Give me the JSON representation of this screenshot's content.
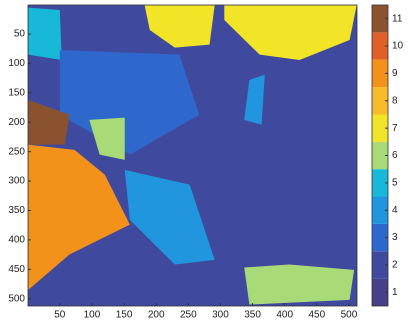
{
  "chart_data": {
    "type": "classmap",
    "xlim": [
      0.5,
      512.5
    ],
    "ylim": [
      0.5,
      512.5
    ],
    "xticks": [
      50,
      100,
      150,
      200,
      250,
      300,
      350,
      400,
      450,
      500
    ],
    "yticks": [
      50,
      100,
      150,
      200,
      250,
      300,
      350,
      400,
      450,
      500
    ],
    "clim": [
      0.5,
      11.5
    ],
    "cticks": [
      1,
      2,
      3,
      4,
      5,
      6,
      7,
      8,
      9,
      10,
      11
    ],
    "colors": [
      "#463f8a",
      "#3f4a9e",
      "#2f68cc",
      "#2196de",
      "#18b8d8",
      "#a8db78",
      "#f2e426",
      "#f8bc2a",
      "#f2921a",
      "#e0602a",
      "#8b5230"
    ],
    "regions": [
      {
        "value": 2,
        "x": [
          0.5,
          512.5,
          512.5,
          0.5
        ],
        "y": [
          0.5,
          0.5,
          512.5,
          512.5
        ]
      },
      {
        "value": 5,
        "x": [
          1,
          50,
          53,
          1
        ],
        "y": [
          5,
          9,
          94,
          85
        ]
      },
      {
        "value": 3,
        "x": [
          50,
          236,
          267,
          159,
          50
        ],
        "y": [
          77,
          85,
          187,
          255,
          187
        ]
      },
      {
        "value": 7,
        "x": [
          182,
          291,
          283,
          229,
          190
        ],
        "y": [
          1,
          1,
          68,
          73,
          43
        ]
      },
      {
        "value": 7,
        "x": [
          306,
          512,
          501,
          423,
          361,
          306
        ],
        "y": [
          1,
          1,
          60,
          94,
          85,
          26
        ]
      },
      {
        "value": 11,
        "x": [
          1,
          65,
          58,
          1
        ],
        "y": [
          162,
          187,
          238,
          238
        ]
      },
      {
        "value": 9,
        "x": [
          1,
          73,
          120,
          159,
          65,
          1
        ],
        "y": [
          238,
          247,
          289,
          374,
          425,
          485
        ]
      },
      {
        "value": 6,
        "x": [
          96,
          151,
          151,
          112
        ],
        "y": [
          196,
          192,
          264,
          255
        ]
      },
      {
        "value": 4,
        "x": [
          151,
          252,
          291,
          229,
          159
        ],
        "y": [
          281,
          306,
          434,
          442,
          366
        ]
      },
      {
        "value": 4,
        "x": [
          345,
          369,
          364,
          337
        ],
        "y": [
          128,
          119,
          204,
          196
        ]
      },
      {
        "value": 6,
        "x": [
          337,
          407,
          508,
          501,
          345
        ],
        "y": [
          447,
          442,
          451,
          502,
          510
        ]
      }
    ]
  }
}
